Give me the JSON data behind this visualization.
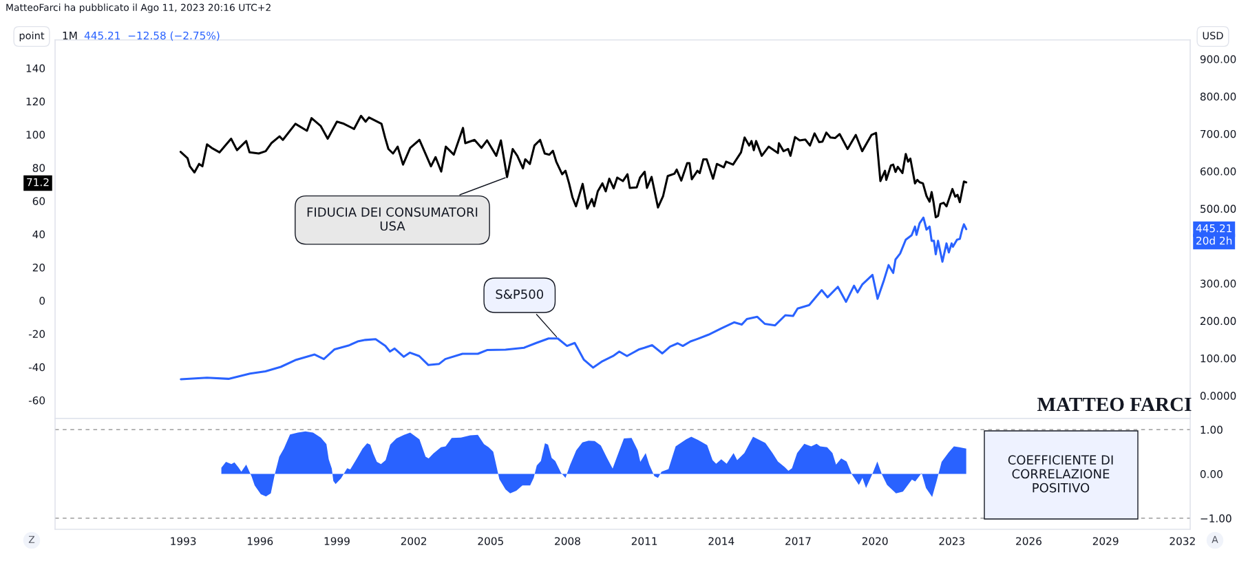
{
  "chart_data": [
    {
      "type": "line",
      "xlim": [
        1988.0,
        2032.3
      ],
      "ylim": [
        -71,
        157
      ],
      "yticks": [
        140,
        120,
        100,
        80,
        60,
        40,
        20,
        0,
        -20,
        -40,
        -60
      ],
      "y2lim": [
        -61,
        951
      ],
      "y2ticks": [
        {
          "value": 900,
          "label": "900.00"
        },
        {
          "value": 800,
          "label": "800.00"
        },
        {
          "value": 700,
          "label": "700.00"
        },
        {
          "value": 600,
          "label": "600.00"
        },
        {
          "value": 500,
          "label": "500.00"
        },
        {
          "value": 300,
          "label": "300.00"
        },
        {
          "value": 200,
          "label": "200.00"
        },
        {
          "value": 100,
          "label": "100.00"
        },
        {
          "value": 0,
          "label": "0.0000"
        }
      ],
      "tick_labels": "y",
      "line_style": "solid",
      "series": [
        {
          "color": "#000000",
          "x": [
            1992.9,
            1993.17,
            1993.26,
            1993.44,
            1993.62,
            1993.75,
            1993.93,
            1994.11,
            1994.42,
            1994.87,
            1995.1,
            1995.46,
            1995.59,
            1995.95,
            1996.22,
            1996.44,
            1996.76,
            1996.89,
            1997.38,
            1997.83,
            1998.01,
            1998.37,
            1998.64,
            1999.0,
            1999.27,
            1999.67,
            1999.94,
            2000.12,
            2000.25,
            2000.74,
            2000.88,
            2001.01,
            2001.19,
            2001.37,
            2001.58,
            2001.86,
            2002.22,
            2002.67,
            2002.85,
            2003.07,
            2003.25,
            2003.56,
            2003.92,
            2004.01,
            2004.37,
            2004.64,
            2004.86,
            2005.22,
            2005.4,
            2005.64,
            2005.86,
            2006.04,
            2006.26,
            2006.35,
            2006.53,
            2006.71,
            2006.93,
            2007.11,
            2007.29,
            2007.43,
            2007.56,
            2007.79,
            2007.92,
            2008.06,
            2008.19,
            2008.33,
            2008.59,
            2008.77,
            2008.95,
            2009.04,
            2009.18,
            2009.36,
            2009.49,
            2009.63,
            2009.8,
            2009.94,
            2010.16,
            2010.34,
            2010.43,
            2010.7,
            2010.83,
            2011.01,
            2011.1,
            2011.28,
            2011.53,
            2011.73,
            2011.91,
            2012.17,
            2012.26,
            2012.44,
            2012.67,
            2012.76,
            2012.85,
            2013.07,
            2013.16,
            2013.3,
            2013.43,
            2013.68,
            2013.83,
            2014.1,
            2014.19,
            2014.46,
            2014.77,
            2014.91,
            2015.09,
            2015.18,
            2015.27,
            2015.36,
            2015.58,
            2015.85,
            2016.21,
            2016.25,
            2016.43,
            2016.61,
            2016.7,
            2016.88,
            2017.06,
            2017.28,
            2017.46,
            2017.64,
            2017.82,
            2017.95,
            2018.1,
            2018.26,
            2018.44,
            2018.62,
            2018.93,
            2019.25,
            2019.5,
            2019.86,
            2020.04,
            2020.21,
            2020.39,
            2020.44,
            2020.62,
            2020.71,
            2020.8,
            2020.89,
            2021.07,
            2021.2,
            2021.29,
            2021.38,
            2021.56,
            2021.65,
            2021.74,
            2021.87,
            2022.01,
            2022.13,
            2022.21,
            2022.28,
            2022.37,
            2022.46,
            2022.55,
            2022.68,
            2022.79,
            2023.02,
            2023.13,
            2023.22,
            2023.31,
            2023.47,
            2023.56
          ],
          "values": [
            89.6,
            85.8,
            80.9,
            77.2,
            82.3,
            80.9,
            94.1,
            92.0,
            89.3,
            97.5,
            90.6,
            96.1,
            89.3,
            88.6,
            90.0,
            94.8,
            98.9,
            96.8,
            106.5,
            102.3,
            109.9,
            105.1,
            97.5,
            107.8,
            106.5,
            103.4,
            111.3,
            107.8,
            110.3,
            106.5,
            98.2,
            91.3,
            88.6,
            92.7,
            81.9,
            92.0,
            96.8,
            80.9,
            86.4,
            77.7,
            92.7,
            87.9,
            104.0,
            94.8,
            96.8,
            92.0,
            96.5,
            87.2,
            96.5,
            74.4,
            91.3,
            87.2,
            79.6,
            85.1,
            82.3,
            93.4,
            96.8,
            88.6,
            87.9,
            90.2,
            83.7,
            76.1,
            78.2,
            70.6,
            62.3,
            56.8,
            70.3,
            55.4,
            61.2,
            56.8,
            65.8,
            70.6,
            65.8,
            73.4,
            67.6,
            74.1,
            72.0,
            76.1,
            67.9,
            68.2,
            74.1,
            77.6,
            67.9,
            74.5,
            56.1,
            63.0,
            75.0,
            76.4,
            78.9,
            72.3,
            82.8,
            82.8,
            73.1,
            78.2,
            76.8,
            85.1,
            85.1,
            73.4,
            82.3,
            80.3,
            83.7,
            81.9,
            89.3,
            98.2,
            93.4,
            96.1,
            90.6,
            96.1,
            87.2,
            92.7,
            88.9,
            94.8,
            90.0,
            91.3,
            87.2,
            98.5,
            96.5,
            97.0,
            93.4,
            100.7,
            95.4,
            95.8,
            101.2,
            98.2,
            97.9,
            100.3,
            91.3,
            99.8,
            90.0,
            99.7,
            101.0,
            72.0,
            78.2,
            72.7,
            81.4,
            81.9,
            77.5,
            80.6,
            76.8,
            88.3,
            83.7,
            85.5,
            70.6,
            72.7,
            71.3,
            70.6,
            63.0,
            59.6,
            65.4,
            59.6,
            50.2,
            51.0,
            58.2,
            58.9,
            56.8,
            67.2,
            62.6,
            63.7,
            59.3,
            71.7,
            71.2
          ],
          "name": null
        },
        {
          "color": "#2962ff",
          "axis": "y2",
          "x": [
            1992.91,
            1993.93,
            1994.77,
            1995.61,
            1996.21,
            1996.81,
            1997.41,
            1998.13,
            1998.49,
            1998.91,
            1999.45,
            1999.81,
            2000.11,
            2000.51,
            2000.89,
            2001.07,
            2001.25,
            2001.61,
            2001.85,
            2002.21,
            2002.57,
            2002.99,
            2003.23,
            2003.9,
            2004.5,
            2004.86,
            2005.58,
            2006.3,
            2006.78,
            2007.26,
            2007.62,
            2007.98,
            2008.28,
            2008.64,
            2009.0,
            2009.36,
            2009.78,
            2010.02,
            2010.32,
            2010.8,
            2011.0,
            2011.3,
            2011.7,
            2012.0,
            2012.3,
            2012.5,
            2012.8,
            2013.0,
            2013.5,
            2014.0,
            2014.5,
            2014.8,
            2015.0,
            2015.4,
            2015.7,
            2016.1,
            2016.5,
            2016.8,
            2016.98,
            2017.43,
            2017.92,
            2018.15,
            2018.55,
            2018.87,
            2019.18,
            2019.32,
            2019.5,
            2019.9,
            2020.1,
            2020.35,
            2020.53,
            2020.71,
            2020.8,
            2020.98,
            2021.2,
            2021.43,
            2021.56,
            2021.62,
            2021.74,
            2021.89,
            2022.01,
            2022.13,
            2022.21,
            2022.3,
            2022.37,
            2022.46,
            2022.63,
            2022.79,
            2022.88,
            2022.99,
            2023.04,
            2023.2,
            2023.31,
            2023.4,
            2023.47,
            2023.56
          ],
          "values": [
            44,
            48,
            45,
            59,
            65,
            77,
            96,
            110,
            98,
            124,
            134,
            145,
            149,
            151,
            133,
            118,
            126,
            104,
            115,
            106,
            82,
            85,
            98,
            112,
            112,
            122,
            123,
            128,
            141,
            153,
            153,
            133,
            141,
            96,
            75,
            92,
            106,
            118,
            106,
            124,
            128,
            135,
            113,
            131,
            140,
            133,
            145,
            150,
            163,
            180,
            196,
            190,
            205,
            211,
            192,
            188,
            215,
            213,
            233,
            242,
            282,
            263,
            291,
            251,
            294,
            276,
            297,
            323,
            259,
            309,
            349,
            328,
            364,
            380,
            417,
            429,
            452,
            430,
            461,
            476,
            444,
            452,
            414,
            414,
            378,
            414,
            358,
            407,
            383,
            407,
            398,
            417,
            419,
            444,
            458,
            445.21
          ]
        }
      ],
      "annotations": [
        "MatteoFarci ha pubblicato il Ago 11, 2023 20:16 UTC+2",
        "point",
        "1M",
        "445.21  −12.58 (−2.75%)",
        "USD",
        "71.2",
        "445.21",
        "20d 2h",
        "MATTEO FARCI",
        {
          "text": "FIDUCIA DEI CONSUMATORI\nUSA",
          "x": 2005.64,
          "y": 74.4
        },
        {
          "text": "S&P500",
          "x": 2007.62,
          "y": -22.7
        }
      ]
    },
    {
      "type": "area",
      "xlim": [
        1988.0,
        2032.3
      ],
      "xticks": [
        1993,
        1996,
        1999,
        2002,
        2005,
        2008,
        2011,
        2014,
        2017,
        2020,
        2023,
        2026,
        2029,
        2032
      ],
      "y2lim": [
        -1.25,
        1.25
      ],
      "y2ticks": [
        {
          "value": 1,
          "label": "1.00"
        },
        {
          "value": 0,
          "label": "0.00"
        },
        {
          "value": -1,
          "label": "−1.00"
        }
      ],
      "ref_lines": [
        {
          "axis": "y2",
          "value": 1,
          "color": "#888888",
          "line_style": "dashed"
        },
        {
          "axis": "y2",
          "value": -1,
          "color": "#888888",
          "line_style": "dashed"
        }
      ],
      "series": [
        {
          "color": "#2962ff",
          "axis": "y2",
          "x": [
            1994.49,
            1994.67,
            1994.88,
            1995.0,
            1995.15,
            1995.27,
            1995.46,
            1995.67,
            1995.79,
            1996.03,
            1996.23,
            1996.42,
            1996.57,
            1996.75,
            1996.93,
            1997.17,
            1997.47,
            1997.77,
            1998.07,
            1998.37,
            1998.59,
            1998.68,
            1998.8,
            1998.86,
            1998.95,
            1999.16,
            1999.4,
            1999.52,
            1999.76,
            2000.0,
            2000.18,
            2000.3,
            2000.42,
            2000.56,
            2000.72,
            2000.9,
            2001.08,
            2001.32,
            2001.62,
            2001.86,
            2002.22,
            2002.46,
            2002.58,
            2002.76,
            2003.06,
            2003.24,
            2003.48,
            2003.84,
            2004.2,
            2004.5,
            2004.74,
            2004.92,
            2005.1,
            2005.22,
            2005.34,
            2005.58,
            2005.76,
            2006.0,
            2006.24,
            2006.54,
            2006.68,
            2006.8,
            2006.96,
            2007.12,
            2007.24,
            2007.38,
            2007.52,
            2007.74,
            2007.92,
            2008.1,
            2008.34,
            2008.58,
            2008.82,
            2009.06,
            2009.3,
            2009.54,
            2009.76,
            2009.96,
            2010.2,
            2010.5,
            2010.74,
            2010.84,
            2011.05,
            2011.19,
            2011.39,
            2011.53,
            2011.67,
            2011.94,
            2012.22,
            2012.63,
            2012.83,
            2013.11,
            2013.45,
            2013.66,
            2013.8,
            2014.0,
            2014.21,
            2014.48,
            2014.62,
            2014.9,
            2015.24,
            2015.72,
            2016.0,
            2016.21,
            2016.48,
            2016.62,
            2016.76,
            2016.96,
            2017.24,
            2017.51,
            2017.72,
            2017.86,
            2018.13,
            2018.34,
            2018.48,
            2018.68,
            2018.89,
            2019.1,
            2019.37,
            2019.51,
            2019.65,
            2019.92,
            2020.09,
            2020.27,
            2020.47,
            2020.82,
            2021.09,
            2021.44,
            2021.57,
            2021.82,
            2021.99,
            2022.23,
            2022.4,
            2022.6,
            2022.88,
            2023.08,
            2023.29,
            2023.56
          ],
          "values": [
            0.14,
            0.27,
            0.22,
            0.26,
            0.15,
            0.05,
            0.21,
            -0.06,
            -0.26,
            -0.46,
            -0.51,
            -0.44,
            -0.02,
            0.39,
            0.57,
            0.89,
            0.93,
            0.96,
            0.93,
            0.82,
            0.67,
            0.33,
            0.12,
            -0.16,
            -0.23,
            -0.1,
            0.13,
            0.1,
            0.33,
            0.57,
            0.69,
            0.66,
            0.46,
            0.27,
            0.22,
            0.31,
            0.66,
            0.8,
            0.88,
            0.93,
            0.78,
            0.39,
            0.35,
            0.46,
            0.6,
            0.62,
            0.81,
            0.82,
            0.87,
            0.88,
            0.67,
            0.6,
            0.5,
            0.19,
            -0.12,
            -0.35,
            -0.44,
            -0.38,
            -0.26,
            -0.26,
            -0.09,
            0.19,
            0.29,
            0.69,
            0.66,
            0.36,
            0.29,
            0.03,
            -0.09,
            0.2,
            0.53,
            0.71,
            0.75,
            0.74,
            0.64,
            0.36,
            0.12,
            0.43,
            0.8,
            0.81,
            0.53,
            0.27,
            0.47,
            0.21,
            -0.05,
            -0.09,
            0.05,
            0.11,
            0.62,
            0.78,
            0.84,
            0.76,
            0.65,
            0.31,
            0.23,
            0.33,
            0.23,
            0.47,
            0.31,
            0.47,
            0.84,
            0.7,
            0.47,
            0.28,
            0.15,
            0.07,
            0.13,
            0.47,
            0.68,
            0.62,
            0.68,
            0.62,
            0.6,
            0.47,
            0.21,
            0.35,
            0.28,
            -0.01,
            -0.25,
            -0.09,
            -0.32,
            0.03,
            0.28,
            -0.01,
            -0.25,
            -0.44,
            -0.4,
            -0.13,
            -0.17,
            0.02,
            -0.32,
            -0.52,
            -0.17,
            0.27,
            0.49,
            0.62,
            0.6,
            0.57
          ]
        }
      ],
      "annotations": [
        "COEFFICIENTE DI\nCORRELAZIONE\nPOSITIVO",
        "Z",
        "A"
      ]
    }
  ]
}
